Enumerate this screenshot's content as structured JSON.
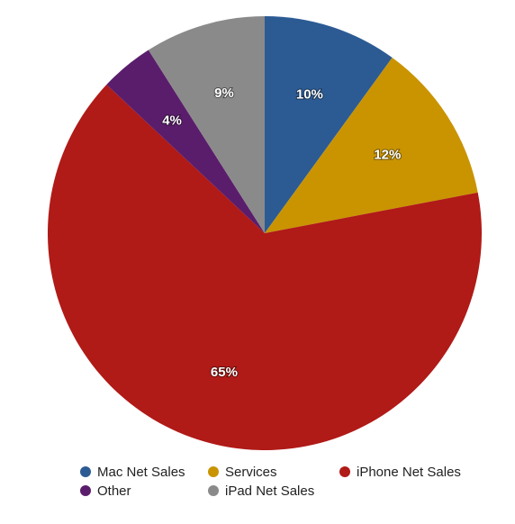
{
  "chart_data": {
    "type": "pie",
    "categories": [
      "Mac Net Sales",
      "Services",
      "iPhone Net Sales",
      "Other",
      "iPad Net Sales"
    ],
    "values": [
      10,
      12,
      65,
      4,
      9
    ],
    "value_labels": [
      "10%",
      "12%",
      "65%",
      "4%",
      "9%"
    ],
    "colors": [
      "#2c5b94",
      "#c99400",
      "#b01a17",
      "#5a1d6b",
      "#8a8a8a"
    ],
    "legend": "bottom"
  }
}
